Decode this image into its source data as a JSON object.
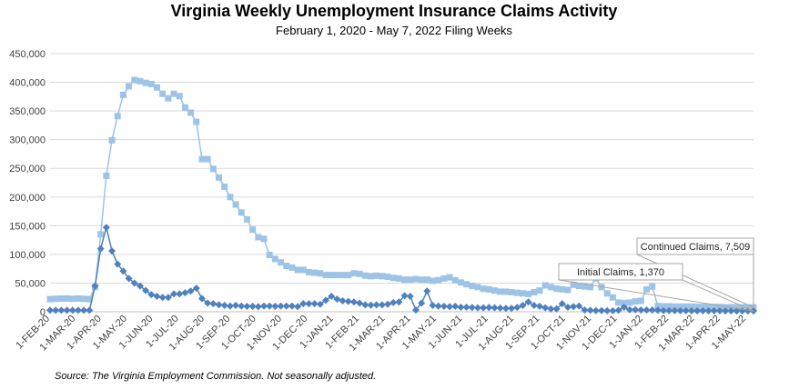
{
  "chart_data": {
    "type": "line",
    "title": "Virginia Weekly Unemployment Insurance Claims Activity",
    "subtitle": "February 1, 2020 - May 7, 2022 Filing Weeks",
    "source": "Source: The Virginia Employment Commission. Not seasonally adjusted.",
    "ylim": [
      0,
      450000
    ],
    "y_ticks": [
      0,
      50000,
      100000,
      150000,
      200000,
      250000,
      300000,
      350000,
      400000,
      450000
    ],
    "y_tick_labels": [
      "0",
      "50,000",
      "100,000",
      "150,000",
      "200,000",
      "250,000",
      "300,000",
      "350,000",
      "400,000",
      "450,000"
    ],
    "x_tick_labels": [
      "1-FEB-20",
      "1-MAR-20",
      "1-APR-20",
      "1-MAY-20",
      "1-JUN-20",
      "1-JUL-20",
      "1-AUG-20",
      "1-SEP-20",
      "1-OCT-20",
      "1-NOV-20",
      "1-DEC-20",
      "1-JAN-21",
      "1-FEB-21",
      "1-MAR-21",
      "1-APR-21",
      "1-MAY-21",
      "1-JUN-21",
      "1-JUL-21",
      "1-AUG-21",
      "1-SEP-21",
      "1-OCT-21",
      "1-NOV-21",
      "1-DEC-21",
      "1-JAN-22",
      "1-FEB-22",
      "1-MAR-22",
      "1-APR-22",
      "1-MAY-22"
    ],
    "grid": true,
    "series": [
      {
        "name": "Continued Claims",
        "color": "#9dc3e6",
        "marker": "square",
        "values": [
          22000,
          22500,
          23000,
          23000,
          22500,
          23000,
          22500,
          22000,
          43000,
          135000,
          237000,
          299000,
          341000,
          378000,
          393000,
          404000,
          402000,
          399000,
          397000,
          391000,
          380000,
          372000,
          380000,
          376000,
          356000,
          347000,
          331000,
          266000,
          266000,
          249000,
          234000,
          218000,
          200000,
          187000,
          173000,
          161000,
          143000,
          130000,
          127000,
          99000,
          92000,
          86000,
          80000,
          77000,
          73000,
          73000,
          69000,
          68000,
          67000,
          64000,
          64000,
          64000,
          64000,
          64000,
          67000,
          66000,
          63000,
          62000,
          63000,
          62000,
          61000,
          59000,
          58000,
          56000,
          56000,
          57000,
          56000,
          56000,
          54000,
          55000,
          58000,
          60000,
          55000,
          51000,
          48000,
          45000,
          43000,
          40000,
          39000,
          37000,
          35000,
          35000,
          34000,
          33000,
          32000,
          31000,
          34000,
          37000,
          46000,
          43000,
          40000,
          39000,
          38000,
          47000,
          45000,
          44000,
          43000,
          58000,
          43000,
          32000,
          25000,
          16000,
          15000,
          16000,
          18000,
          19000,
          39000,
          44000,
          10000,
          9500,
          9500,
          9000,
          9000,
          9000,
          9000,
          8500,
          8500,
          8500,
          8300,
          8200,
          8000,
          7900,
          7800,
          7700,
          7600,
          7509
        ]
      },
      {
        "name": "Initial Claims",
        "color": "#4f81bd",
        "marker": "diamond",
        "values": [
          2500,
          2500,
          2500,
          2500,
          2500,
          2500,
          2500,
          2500,
          45000,
          110000,
          147000,
          106000,
          83000,
          71000,
          58000,
          50000,
          45000,
          37000,
          30000,
          27000,
          25000,
          25000,
          31000,
          31000,
          33000,
          36000,
          41000,
          23000,
          15000,
          14000,
          12000,
          11000,
          10000,
          11000,
          10000,
          9500,
          9500,
          9000,
          10000,
          10000,
          9500,
          10000,
          10000,
          10000,
          9000,
          14000,
          14000,
          14000,
          13000,
          20000,
          27000,
          22000,
          19000,
          18000,
          17000,
          15000,
          12000,
          11500,
          12000,
          12000,
          13000,
          16000,
          17000,
          28000,
          27000,
          3000,
          15000,
          36000,
          11000,
          10000,
          9500,
          9000,
          9500,
          8000,
          8000,
          7500,
          7000,
          7000,
          7500,
          7000,
          6500,
          6000,
          6000,
          7500,
          11000,
          17000,
          11000,
          9500,
          7000,
          5000,
          5000,
          14000,
          8000,
          9000,
          10000,
          3000,
          2500,
          2000,
          2000,
          1800,
          1700,
          2500,
          8000,
          3500,
          3500,
          3000,
          3000,
          3000,
          2500,
          2000,
          2000,
          2000,
          1800,
          1700,
          1600,
          1500,
          1500,
          1500,
          1500,
          1500,
          1450,
          1400,
          1400,
          1400,
          1380,
          1370
        ]
      }
    ],
    "annotations": [
      {
        "label": "Continued Claims, 7,509",
        "series": "Continued Claims"
      },
      {
        "label": "Initial Claims, 1,370",
        "series": "Initial Claims"
      }
    ]
  }
}
